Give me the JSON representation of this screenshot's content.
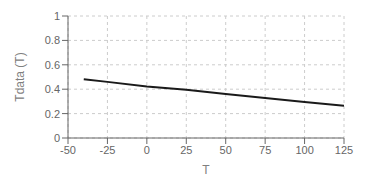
{
  "chart_data": {
    "type": "line",
    "x": [
      -40,
      -25,
      0,
      25,
      50,
      75,
      100,
      125
    ],
    "values": [
      0.482,
      0.46,
      0.423,
      0.395,
      0.36,
      0.328,
      0.296,
      0.265
    ],
    "color": "#1a1a1a",
    "xlabel": "T",
    "ylabel": "Tdata (T)",
    "xlim": [
      -50,
      125
    ],
    "ylim": [
      0,
      1
    ],
    "xticks": [
      -50,
      -25,
      0,
      25,
      50,
      75,
      100,
      125
    ],
    "yticks": [
      0,
      0.2,
      0.4,
      0.6,
      0.8,
      1.0
    ],
    "grid": true
  }
}
